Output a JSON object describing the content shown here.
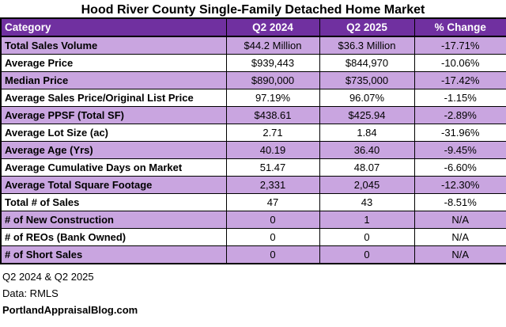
{
  "title": "Hood River County Single-Family Detached Home Market",
  "colors": {
    "header_bg": "#7030A0",
    "header_text": "#FFFFFF",
    "row_alt_bg": "#C9A5E0",
    "row_bg": "#FFFFFF",
    "border": "#000000",
    "text": "#000000"
  },
  "footer": {
    "period": "Q2 2024 & Q2 2025",
    "source": "Data: RMLS",
    "site": "PortlandAppraisalBlog.com"
  },
  "chart_data": {
    "type": "table",
    "title": "Hood River County Single-Family Detached Home Market",
    "columns": [
      "Category",
      "Q2 2024",
      "Q2 2025",
      "% Change"
    ],
    "rows": [
      {
        "category": "Total Sales Volume",
        "q2_2024": "$44.2 Million",
        "q2_2025": "$36.3 Million",
        "pct_change": "-17.71%"
      },
      {
        "category": "Average Price",
        "q2_2024": "$939,443",
        "q2_2025": "$844,970",
        "pct_change": "-10.06%"
      },
      {
        "category": "Median Price",
        "q2_2024": "$890,000",
        "q2_2025": "$735,000",
        "pct_change": "-17.42%"
      },
      {
        "category": "Average Sales Price/Original List Price",
        "q2_2024": "97.19%",
        "q2_2025": "96.07%",
        "pct_change": "-1.15%"
      },
      {
        "category": "Average PPSF (Total SF)",
        "q2_2024": "$438.61",
        "q2_2025": "$425.94",
        "pct_change": "-2.89%"
      },
      {
        "category": "Average Lot Size (ac)",
        "q2_2024": "2.71",
        "q2_2025": "1.84",
        "pct_change": "-31.96%"
      },
      {
        "category": "Average Age (Yrs)",
        "q2_2024": "40.19",
        "q2_2025": "36.40",
        "pct_change": "-9.45%"
      },
      {
        "category": "Average Cumulative Days on Market",
        "q2_2024": "51.47",
        "q2_2025": "48.07",
        "pct_change": "-6.60%"
      },
      {
        "category": "Average Total Square Footage",
        "q2_2024": "2,331",
        "q2_2025": "2,045",
        "pct_change": "-12.30%"
      },
      {
        "category": "Total # of Sales",
        "q2_2024": "47",
        "q2_2025": "43",
        "pct_change": "-8.51%"
      },
      {
        "category": "# of New Construction",
        "q2_2024": "0",
        "q2_2025": "1",
        "pct_change": "N/A"
      },
      {
        "category": "# of REOs (Bank Owned)",
        "q2_2024": "0",
        "q2_2025": "0",
        "pct_change": "N/A"
      },
      {
        "category": "# of Short Sales",
        "q2_2024": "0",
        "q2_2025": "0",
        "pct_change": "N/A"
      }
    ],
    "notes": [
      "Q2 2024 & Q2 2025",
      "Data: RMLS",
      "PortlandAppraisalBlog.com"
    ],
    "legend_position": "none",
    "grid": "all-cell-borders"
  }
}
